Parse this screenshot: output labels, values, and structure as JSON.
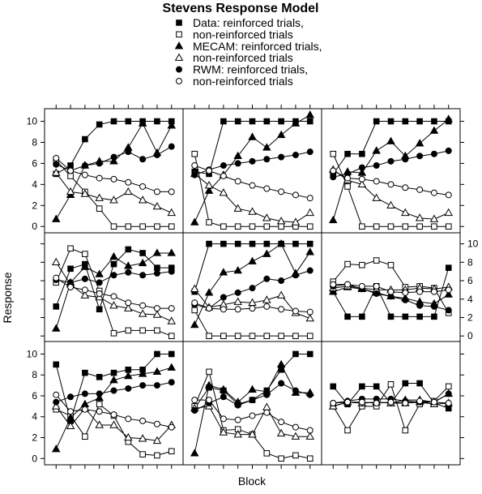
{
  "figure": {
    "title": "Stevens Response Model",
    "xlabel": "Block",
    "ylabel": "Response"
  },
  "legend": {
    "placement": "top-center",
    "entries": [
      {
        "label": "Data: reinforced trials,",
        "marker": "square",
        "filled": true
      },
      {
        "label": "non-reinforced trials",
        "marker": "square",
        "filled": false
      },
      {
        "label": "MECAM: reinforced trials,",
        "marker": "triangle",
        "filled": true
      },
      {
        "label": "non-reinforced trials",
        "marker": "triangle",
        "filled": false
      },
      {
        "label": "RWM: reinforced trials,",
        "marker": "circle",
        "filled": true
      },
      {
        "label": "non-reinforced trials",
        "marker": "circle",
        "filled": false
      }
    ]
  },
  "chart_data": {
    "type": "line",
    "layout": "3x3 lattice panels",
    "x": [
      1,
      2,
      3,
      4,
      5,
      6,
      7,
      8,
      9
    ],
    "ylim": [
      -0.6,
      11.2
    ],
    "yticks": [
      "0",
      "2",
      "4",
      "6",
      "8",
      "10"
    ],
    "grid": false,
    "panels": [
      {
        "series": [
          {
            "marker": "square",
            "filled": true,
            "values": [
              5.0,
              5.8,
              8.3,
              9.7,
              10,
              10,
              10,
              10,
              10
            ]
          },
          {
            "marker": "square",
            "filled": false,
            "values": [
              6.3,
              4.8,
              3.3,
              1.7,
              0,
              0,
              0,
              0,
              0
            ]
          },
          {
            "marker": "triangle",
            "filled": true,
            "values": [
              0.7,
              3.0,
              5.8,
              6.2,
              6.2,
              7.5,
              9.8,
              7.0,
              9.6
            ]
          },
          {
            "marker": "triangle",
            "filled": false,
            "values": [
              5.1,
              3.3,
              3.1,
              2.7,
              2.5,
              3.3,
              2.5,
              1.9,
              1.3
            ]
          },
          {
            "marker": "circle",
            "filled": true,
            "values": [
              5.9,
              5.3,
              5.8,
              6.0,
              6.6,
              7.1,
              6.4,
              6.8,
              7.6
            ]
          },
          {
            "marker": "circle",
            "filled": false,
            "values": [
              6.5,
              5.3,
              4.9,
              4.6,
              4.5,
              4.2,
              3.8,
              3.3,
              3.3
            ]
          }
        ]
      },
      {
        "series": [
          {
            "marker": "square",
            "filled": true,
            "values": [
              5.2,
              5.0,
              10,
              10,
              10,
              10,
              10,
              10,
              10
            ]
          },
          {
            "marker": "square",
            "filled": false,
            "values": [
              6.9,
              0.4,
              0,
              0,
              0,
              0,
              0,
              0,
              0
            ]
          },
          {
            "marker": "triangle",
            "filled": true,
            "values": [
              0.4,
              3.4,
              4.9,
              6.7,
              8.5,
              7.5,
              8.7,
              9.8,
              10.6
            ]
          },
          {
            "marker": "triangle",
            "filled": false,
            "values": [
              5.0,
              3.9,
              3.2,
              1.7,
              1.4,
              0.8,
              0.5,
              0.4,
              1.3
            ]
          },
          {
            "marker": "circle",
            "filled": true,
            "values": [
              4.9,
              5.4,
              5.8,
              6.0,
              6.2,
              6.4,
              6.6,
              6.8,
              7.1
            ]
          },
          {
            "marker": "circle",
            "filled": false,
            "values": [
              5.8,
              5.3,
              4.8,
              4.3,
              3.9,
              3.6,
              3.3,
              3.0,
              2.7
            ]
          }
        ]
      },
      {
        "series": [
          {
            "marker": "square",
            "filled": true,
            "values": [
              5.0,
              6.9,
              6.9,
              10,
              10,
              10,
              10,
              10,
              10
            ]
          },
          {
            "marker": "square",
            "filled": false,
            "values": [
              6.9,
              3.8,
              0,
              0,
              0,
              0,
              0,
              0,
              0
            ]
          },
          {
            "marker": "triangle",
            "filled": true,
            "values": [
              0.6,
              5.2,
              5.1,
              7.2,
              8.1,
              6.7,
              7.9,
              9.1,
              10.2
            ]
          },
          {
            "marker": "triangle",
            "filled": false,
            "values": [
              5.4,
              4.4,
              4.0,
              2.7,
              2.0,
              1.3,
              0.8,
              0.7,
              1.3
            ]
          },
          {
            "marker": "circle",
            "filled": true,
            "values": [
              4.7,
              5.0,
              5.6,
              5.8,
              6.2,
              6.4,
              6.7,
              6.9,
              7.2
            ]
          },
          {
            "marker": "circle",
            "filled": false,
            "values": [
              5.3,
              4.6,
              4.5,
              4.3,
              4.0,
              3.7,
              3.5,
              3.2,
              3.0
            ]
          }
        ]
      },
      {
        "series": [
          {
            "marker": "square",
            "filled": true,
            "values": [
              3.2,
              7.3,
              7.8,
              2.9,
              7.8,
              9.4,
              9.0,
              7.4,
              7.4
            ]
          },
          {
            "marker": "square",
            "filled": false,
            "values": [
              5.8,
              9.5,
              8.9,
              4.9,
              0.3,
              0.6,
              0.6,
              0.6,
              0
            ]
          },
          {
            "marker": "triangle",
            "filled": true,
            "values": [
              0.8,
              5.8,
              7.5,
              6.7,
              8.6,
              7.6,
              7.9,
              9.0,
              9.0
            ]
          },
          {
            "marker": "triangle",
            "filled": false,
            "values": [
              8.0,
              5.6,
              4.4,
              4.2,
              3.3,
              3.0,
              2.4,
              2.3,
              1.6
            ]
          },
          {
            "marker": "circle",
            "filled": true,
            "values": [
              6.1,
              5.8,
              6.2,
              5.8,
              6.6,
              6.9,
              6.6,
              6.8,
              7.0
            ]
          },
          {
            "marker": "circle",
            "filled": false,
            "values": [
              6.3,
              5.3,
              5.0,
              4.6,
              4.3,
              3.6,
              3.3,
              3.0,
              3.0
            ]
          }
        ]
      },
      {
        "series": [
          {
            "marker": "square",
            "filled": true,
            "values": [
              4.8,
              10,
              10,
              10,
              10,
              10,
              10,
              10,
              10
            ]
          },
          {
            "marker": "square",
            "filled": false,
            "values": [
              2.8,
              0,
              0,
              0,
              0,
              0,
              0,
              0,
              0
            ]
          },
          {
            "marker": "triangle",
            "filled": true,
            "values": [
              1.2,
              4.7,
              6.9,
              7.1,
              8.1,
              8.9,
              10,
              6.8,
              9.1
            ]
          },
          {
            "marker": "triangle",
            "filled": false,
            "values": [
              5.1,
              3.1,
              3.4,
              3.7,
              3.6,
              3.9,
              4.4,
              2.5,
              1.9
            ]
          },
          {
            "marker": "circle",
            "filled": true,
            "values": [
              3.4,
              3.0,
              4.2,
              4.7,
              5.2,
              6.2,
              6.0,
              6.6,
              7.1
            ]
          },
          {
            "marker": "circle",
            "filled": false,
            "values": [
              3.6,
              3.0,
              2.9,
              2.9,
              3.0,
              3.2,
              2.9,
              2.7,
              2.6
            ]
          }
        ]
      },
      {
        "series": [
          {
            "marker": "square",
            "filled": true,
            "values": [
              4.8,
              2.1,
              2.1,
              5.4,
              2.1,
              2.1,
              2.1,
              2.1,
              7.4
            ]
          },
          {
            "marker": "square",
            "filled": false,
            "values": [
              5.9,
              7.8,
              7.7,
              8.2,
              7.7,
              5.3,
              5.4,
              5.2,
              2.5
            ]
          },
          {
            "marker": "triangle",
            "filled": true,
            "values": [
              4.8,
              5.3,
              5.1,
              4.7,
              4.3,
              4.1,
              3.7,
              3.5,
              4.5
            ]
          },
          {
            "marker": "triangle",
            "filled": false,
            "values": [
              5.2,
              5.4,
              5.2,
              5.0,
              5.0,
              5.0,
              5.2,
              5.1,
              5.3
            ]
          },
          {
            "marker": "circle",
            "filled": true,
            "values": [
              5.4,
              5.6,
              5.1,
              4.6,
              4.3,
              3.9,
              3.3,
              3.2,
              2.8
            ]
          },
          {
            "marker": "circle",
            "filled": false,
            "values": [
              5.6,
              5.6,
              5.4,
              5.4,
              4.8,
              4.7,
              4.8,
              4.8,
              5.0
            ]
          }
        ]
      },
      {
        "series": [
          {
            "marker": "square",
            "filled": true,
            "values": [
              9.0,
              3.6,
              8.2,
              7.8,
              8.2,
              8.5,
              8.5,
              10,
              10
            ]
          },
          {
            "marker": "square",
            "filled": false,
            "values": [
              4.7,
              4.1,
              2.1,
              5.2,
              4.1,
              1.6,
              0.4,
              0.3,
              0.7
            ]
          },
          {
            "marker": "triangle",
            "filled": true,
            "values": [
              0.9,
              3.9,
              5.2,
              5.8,
              7.5,
              7.9,
              8.1,
              8.3,
              8.7
            ]
          },
          {
            "marker": "triangle",
            "filled": false,
            "values": [
              5.0,
              3.1,
              4.8,
              3.2,
              3.2,
              2.0,
              1.9,
              1.7,
              3.2
            ]
          },
          {
            "marker": "circle",
            "filled": true,
            "values": [
              5.4,
              5.9,
              6.2,
              6.2,
              6.5,
              6.7,
              7.0,
              7.0,
              7.3
            ]
          },
          {
            "marker": "circle",
            "filled": false,
            "values": [
              6.1,
              4.5,
              4.7,
              4.5,
              4.2,
              3.8,
              3.6,
              3.3,
              3.0
            ]
          }
        ]
      },
      {
        "series": [
          {
            "marker": "square",
            "filled": true,
            "values": [
              4.8,
              6.8,
              6.5,
              5.2,
              5.6,
              6.5,
              8.5,
              10,
              10
            ]
          },
          {
            "marker": "square",
            "filled": false,
            "values": [
              5.0,
              8.3,
              2.7,
              2.8,
              2.3,
              0.5,
              0,
              0.3,
              0
            ]
          },
          {
            "marker": "triangle",
            "filled": true,
            "values": [
              0.5,
              7.0,
              6.6,
              5.4,
              6.6,
              6.4,
              9.0,
              6.3,
              6.3
            ]
          },
          {
            "marker": "triangle",
            "filled": false,
            "values": [
              4.8,
              5.0,
              2.5,
              2.3,
              2.3,
              4.9,
              2.4,
              2.1,
              2.1
            ]
          },
          {
            "marker": "circle",
            "filled": true,
            "values": [
              4.6,
              5.3,
              5.9,
              5.1,
              5.6,
              6.1,
              7.2,
              6.5,
              6.1
            ]
          },
          {
            "marker": "circle",
            "filled": false,
            "values": [
              5.6,
              5.6,
              3.8,
              3.7,
              4.1,
              4.4,
              3.5,
              3.0,
              2.7
            ]
          }
        ]
      },
      {
        "series": [
          {
            "marker": "square",
            "filled": true,
            "values": [
              6.9,
              5.2,
              6.9,
              6.9,
              5.3,
              7.2,
              7.2,
              5.3,
              4.8
            ]
          },
          {
            "marker": "square",
            "filled": false,
            "values": [
              5.0,
              2.7,
              5.0,
              5.0,
              7.1,
              2.7,
              5.2,
              5.5,
              6.9
            ]
          },
          {
            "marker": "triangle",
            "filled": true,
            "values": [
              5.0,
              5.4,
              5.3,
              5.4,
              5.3,
              5.6,
              5.6,
              5.4,
              6.2
            ]
          },
          {
            "marker": "triangle",
            "filled": false,
            "values": [
              5.0,
              5.4,
              5.3,
              5.4,
              5.3,
              5.3,
              5.4,
              5.2,
              5.3
            ]
          },
          {
            "marker": "circle",
            "filled": true,
            "values": [
              5.3,
              5.5,
              5.7,
              5.7,
              5.7,
              5.5,
              5.4,
              5.4,
              6.2
            ]
          },
          {
            "marker": "circle",
            "filled": false,
            "values": [
              5.3,
              5.4,
              5.4,
              5.3,
              5.4,
              5.3,
              5.5,
              5.4,
              5.3
            ]
          }
        ]
      }
    ]
  }
}
